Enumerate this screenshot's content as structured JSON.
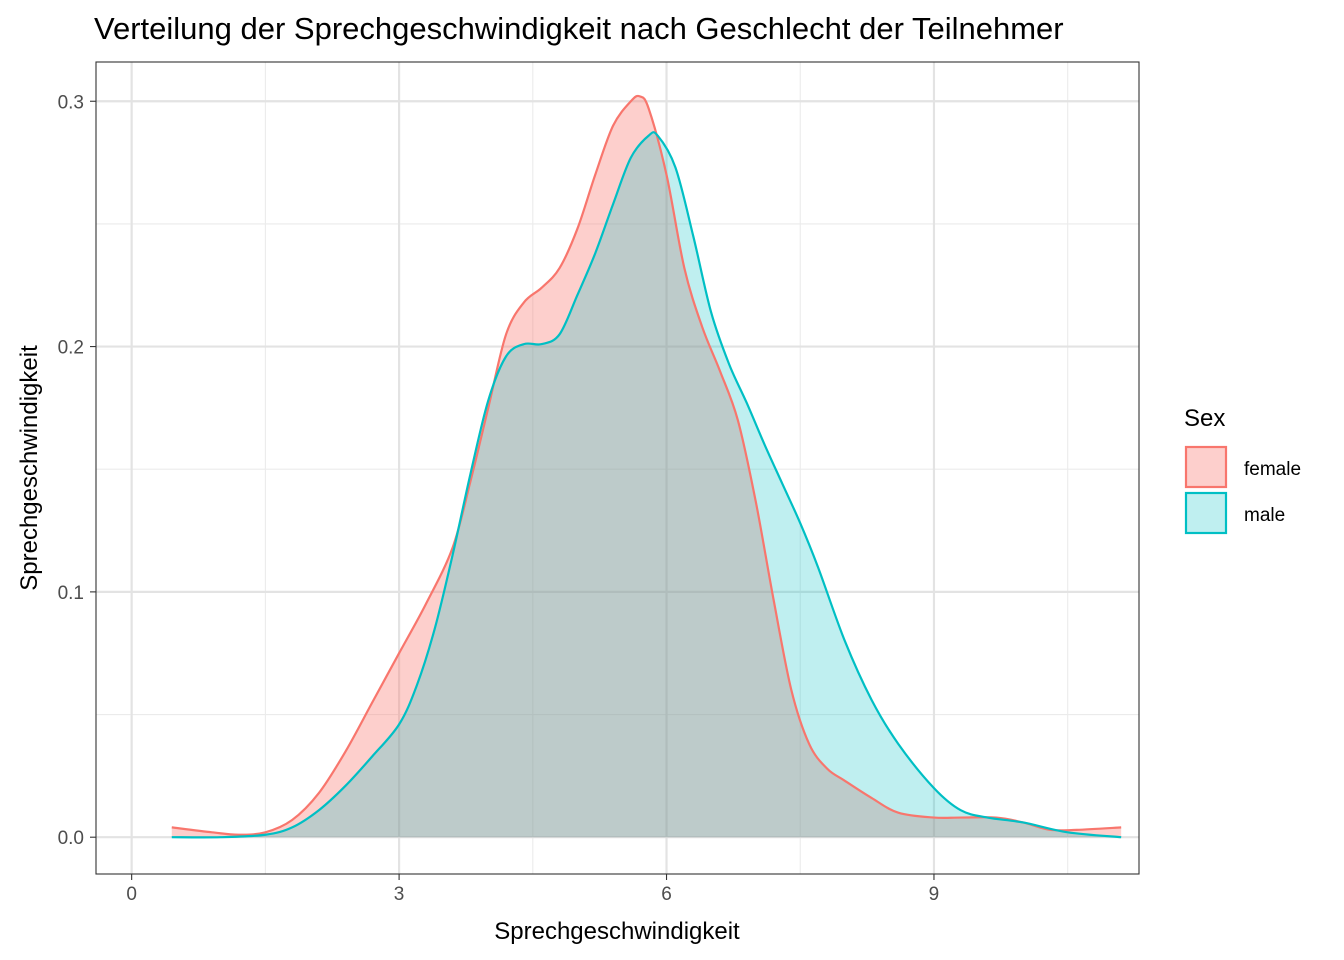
{
  "chart_data": {
    "type": "area",
    "title": "Verteilung der Sprechgeschwindigkeit nach Geschlecht der Teilnehmer",
    "xlabel": "Sprechgeschwindigkeit",
    "ylabel": "Sprechgeschwindigkeit",
    "xlim": [
      -0.4,
      11.3
    ],
    "ylim": [
      -0.015,
      0.316
    ],
    "x_ticks": [
      0,
      3,
      6,
      9
    ],
    "x_tick_labels": [
      "0",
      "3",
      "6",
      "9"
    ],
    "y_ticks": [
      0.0,
      0.1,
      0.2,
      0.3
    ],
    "y_tick_labels": [
      "0.0",
      "0.1",
      "0.2",
      "0.3"
    ],
    "grid": true,
    "legend": {
      "title": "Sex",
      "position": "right"
    },
    "series": [
      {
        "name": "female",
        "line_color": "#F8766D",
        "fill_color": "#F8766D",
        "fill_opacity": 0.35,
        "x": [
          0.45,
          0.9,
          1.2,
          1.5,
          1.8,
          2.1,
          2.4,
          2.7,
          3.0,
          3.3,
          3.6,
          3.8,
          4.0,
          4.2,
          4.4,
          4.6,
          4.8,
          5.0,
          5.2,
          5.4,
          5.6,
          5.7,
          5.8,
          6.0,
          6.2,
          6.4,
          6.6,
          6.8,
          7.0,
          7.2,
          7.4,
          7.6,
          7.8,
          8.0,
          8.3,
          8.6,
          9.0,
          9.3,
          9.7,
          10.0,
          10.3,
          10.6,
          11.1
        ],
        "y": [
          0.004,
          0.002,
          0.001,
          0.002,
          0.007,
          0.018,
          0.035,
          0.055,
          0.075,
          0.095,
          0.118,
          0.145,
          0.175,
          0.205,
          0.218,
          0.224,
          0.232,
          0.248,
          0.27,
          0.29,
          0.3,
          0.302,
          0.297,
          0.27,
          0.232,
          0.208,
          0.19,
          0.17,
          0.137,
          0.097,
          0.06,
          0.038,
          0.028,
          0.023,
          0.016,
          0.01,
          0.008,
          0.008,
          0.008,
          0.006,
          0.003,
          0.003,
          0.004
        ]
      },
      {
        "name": "male",
        "line_color": "#00BFC4",
        "fill_color": "#00BFC4",
        "fill_opacity": 0.25,
        "x": [
          0.45,
          1.0,
          1.5,
          1.8,
          2.1,
          2.4,
          2.7,
          3.0,
          3.2,
          3.4,
          3.6,
          3.8,
          4.0,
          4.2,
          4.4,
          4.6,
          4.8,
          5.0,
          5.2,
          5.4,
          5.6,
          5.8,
          5.9,
          6.1,
          6.3,
          6.5,
          6.7,
          6.9,
          7.1,
          7.3,
          7.5,
          7.7,
          8.0,
          8.3,
          8.6,
          9.0,
          9.3,
          9.6,
          10.0,
          10.5,
          11.1
        ],
        "y": [
          0.0,
          0.0,
          0.001,
          0.004,
          0.011,
          0.021,
          0.033,
          0.046,
          0.062,
          0.085,
          0.115,
          0.148,
          0.178,
          0.196,
          0.201,
          0.201,
          0.205,
          0.221,
          0.238,
          0.258,
          0.277,
          0.286,
          0.286,
          0.273,
          0.245,
          0.214,
          0.193,
          0.177,
          0.16,
          0.144,
          0.128,
          0.11,
          0.08,
          0.056,
          0.038,
          0.02,
          0.011,
          0.008,
          0.006,
          0.002,
          0.0
        ]
      }
    ]
  }
}
